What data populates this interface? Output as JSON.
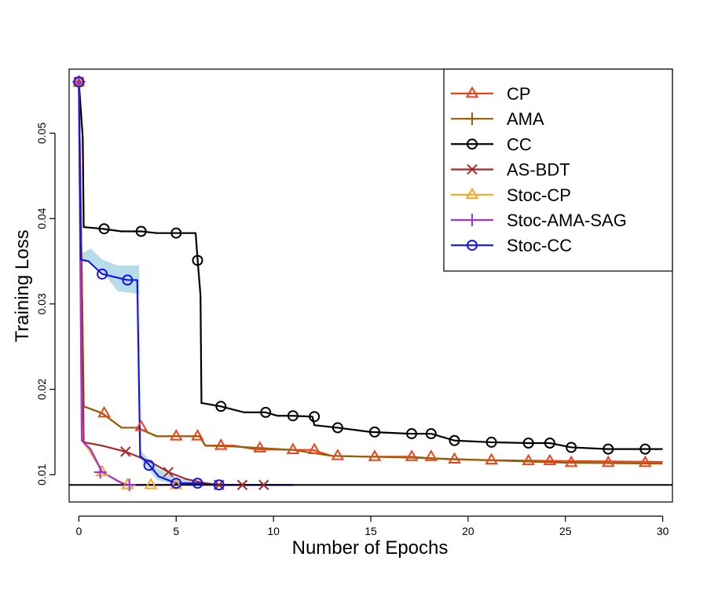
{
  "chart_data": {
    "type": "line",
    "title": "",
    "xlabel": "Number of Epochs",
    "ylabel": "Training Loss",
    "xlim": [
      -0.5,
      30.5
    ],
    "ylim": [
      0.0068,
      0.0575
    ],
    "xticks": [
      0,
      5,
      10,
      15,
      20,
      25,
      30
    ],
    "yticks": [
      0.01,
      0.02,
      0.03,
      0.04,
      0.05
    ],
    "xtick_labels": [
      "0",
      "5",
      "10",
      "15",
      "20",
      "25",
      "30"
    ],
    "ytick_labels": [
      "0.01",
      "0.02",
      "0.03",
      "0.04",
      "0.05"
    ],
    "grid": false,
    "legend_position": "top-right",
    "reference_line": {
      "y": 0.0088,
      "color": "#000000"
    },
    "series": [
      {
        "name": "CP",
        "color": "#e8431b",
        "marker": "triangle",
        "line_points": [
          [
            0,
            0.056
          ],
          [
            0.25,
            0.018
          ],
          [
            1.2,
            0.0172
          ],
          [
            2.2,
            0.0155
          ],
          [
            3,
            0.0155
          ],
          [
            4,
            0.0145
          ],
          [
            5,
            0.0145
          ],
          [
            6.2,
            0.0145
          ],
          [
            6.5,
            0.0134
          ],
          [
            7.3,
            0.0134
          ],
          [
            8,
            0.0134
          ],
          [
            9,
            0.013
          ],
          [
            11,
            0.0129
          ],
          [
            12,
            0.0129
          ],
          [
            13,
            0.0122
          ],
          [
            15,
            0.0121
          ],
          [
            17,
            0.0121
          ],
          [
            19,
            0.0118
          ],
          [
            21,
            0.0117
          ],
          [
            25,
            0.0116
          ],
          [
            30,
            0.0115
          ]
        ],
        "marker_points": [
          [
            0,
            0.056
          ],
          [
            1.3,
            0.0172
          ],
          [
            3.2,
            0.0156
          ],
          [
            5,
            0.0145
          ],
          [
            6.1,
            0.0145
          ],
          [
            7.3,
            0.0134
          ],
          [
            9.3,
            0.0131
          ],
          [
            11,
            0.0129
          ],
          [
            12.1,
            0.0129
          ],
          [
            13.3,
            0.0122
          ],
          [
            15.2,
            0.0121
          ],
          [
            17.1,
            0.0121
          ],
          [
            18.1,
            0.0121
          ],
          [
            19.3,
            0.0118
          ],
          [
            21.2,
            0.0117
          ],
          [
            23.1,
            0.0116
          ],
          [
            24.2,
            0.0116
          ],
          [
            25.3,
            0.0114
          ],
          [
            27.2,
            0.0114
          ],
          [
            29.1,
            0.0114
          ]
        ]
      },
      {
        "name": "AMA",
        "color": "#93600b",
        "marker": "plus",
        "line_points": [
          [
            0,
            0.056
          ],
          [
            0.25,
            0.018
          ],
          [
            1.2,
            0.0172
          ],
          [
            2.2,
            0.0155
          ],
          [
            3,
            0.0155
          ],
          [
            4,
            0.0145
          ],
          [
            5,
            0.0145
          ],
          [
            6.2,
            0.0145
          ],
          [
            6.5,
            0.0134
          ],
          [
            8,
            0.0133
          ],
          [
            11,
            0.0129
          ],
          [
            13,
            0.0122
          ],
          [
            17,
            0.012
          ],
          [
            21,
            0.0117
          ],
          [
            25,
            0.0114
          ],
          [
            30,
            0.0113
          ]
        ],
        "marker_points": [
          [
            0,
            0.056
          ]
        ]
      },
      {
        "name": "CC",
        "color": "#000000",
        "marker": "circle",
        "line_points": [
          [
            0,
            0.056
          ],
          [
            0.2,
            0.0495
          ],
          [
            0.25,
            0.039
          ],
          [
            1.2,
            0.0388
          ],
          [
            2.2,
            0.0385
          ],
          [
            3.2,
            0.0385
          ],
          [
            4,
            0.0383
          ],
          [
            5,
            0.0383
          ],
          [
            6,
            0.0383
          ],
          [
            6.1,
            0.0352
          ],
          [
            6.25,
            0.031
          ],
          [
            6.3,
            0.0184
          ],
          [
            7.3,
            0.018
          ],
          [
            8.5,
            0.0173
          ],
          [
            9.6,
            0.0173
          ],
          [
            10.2,
            0.0169
          ],
          [
            11,
            0.0169
          ],
          [
            12,
            0.0168
          ],
          [
            12.1,
            0.0158
          ],
          [
            13.3,
            0.0155
          ],
          [
            15,
            0.015
          ],
          [
            17,
            0.0148
          ],
          [
            18.1,
            0.0148
          ],
          [
            19.3,
            0.014
          ],
          [
            21.2,
            0.0138
          ],
          [
            23.1,
            0.0137
          ],
          [
            24.2,
            0.0137
          ],
          [
            25.3,
            0.0132
          ],
          [
            27.2,
            0.013
          ],
          [
            30,
            0.013
          ]
        ],
        "marker_points": [
          [
            0,
            0.056
          ],
          [
            1.3,
            0.0388
          ],
          [
            3.2,
            0.0385
          ],
          [
            5,
            0.0383
          ],
          [
            6.1,
            0.0351
          ],
          [
            7.3,
            0.018
          ],
          [
            9.6,
            0.0173
          ],
          [
            11,
            0.0169
          ],
          [
            12.1,
            0.0168
          ],
          [
            13.3,
            0.0155
          ],
          [
            15.2,
            0.015
          ],
          [
            17.1,
            0.0148
          ],
          [
            18.1,
            0.0148
          ],
          [
            19.3,
            0.014
          ],
          [
            21.2,
            0.0138
          ],
          [
            23.1,
            0.0137
          ],
          [
            24.2,
            0.0137
          ],
          [
            25.3,
            0.0132
          ],
          [
            27.2,
            0.013
          ],
          [
            29.1,
            0.013
          ]
        ]
      },
      {
        "name": "AS-BDT",
        "color": "#a52a2a",
        "marker": "cross",
        "line_points": [
          [
            0,
            0.056
          ],
          [
            0.25,
            0.0138
          ],
          [
            1.2,
            0.0134
          ],
          [
            2.4,
            0.0127
          ],
          [
            3.6,
            0.0116
          ],
          [
            4.6,
            0.0103
          ],
          [
            5.5,
            0.0095
          ],
          [
            6.5,
            0.009
          ],
          [
            7.2,
            0.0088
          ],
          [
            11,
            0.0088
          ]
        ],
        "marker_points": [
          [
            0,
            0.056
          ],
          [
            2.4,
            0.0127
          ],
          [
            4.6,
            0.0103
          ],
          [
            7.2,
            0.0088
          ],
          [
            8.4,
            0.0088
          ],
          [
            9.5,
            0.0088
          ]
        ]
      },
      {
        "name": "Stoc-CP",
        "color": "#f5a623",
        "marker": "triangle",
        "line_points": [
          [
            0,
            0.056
          ],
          [
            0.15,
            0.014
          ],
          [
            0.5,
            0.013
          ],
          [
            1.2,
            0.0103
          ],
          [
            2,
            0.0093
          ],
          [
            2.5,
            0.0088
          ],
          [
            5,
            0.0088
          ]
        ],
        "marker_points": [
          [
            0,
            0.056
          ],
          [
            1.2,
            0.0103
          ],
          [
            2.5,
            0.0088
          ],
          [
            3.7,
            0.0088
          ],
          [
            5,
            0.0088
          ]
        ]
      },
      {
        "name": "Stoc-AMA-SAG",
        "color": "#a033d9",
        "marker": "plus",
        "line_points": [
          [
            0,
            0.056
          ],
          [
            0.15,
            0.014
          ],
          [
            0.6,
            0.013
          ],
          [
            1.2,
            0.0103
          ],
          [
            2.2,
            0.009
          ],
          [
            2.6,
            0.0088
          ],
          [
            5,
            0.0088
          ]
        ],
        "marker_points": [
          [
            0,
            0.056
          ],
          [
            1.1,
            0.0103
          ],
          [
            2.6,
            0.0088
          ]
        ]
      },
      {
        "name": "Stoc-CC",
        "color": "#1414e6",
        "marker": "circle",
        "line_points": [
          [
            0,
            0.056
          ],
          [
            0.1,
            0.0352
          ],
          [
            0.5,
            0.035
          ],
          [
            1.2,
            0.0335
          ],
          [
            2.5,
            0.0328
          ],
          [
            3,
            0.0328
          ],
          [
            3.05,
            0.026
          ],
          [
            3.15,
            0.0122
          ],
          [
            3.6,
            0.0112
          ],
          [
            4.1,
            0.0098
          ],
          [
            5,
            0.009
          ],
          [
            6,
            0.009
          ],
          [
            7,
            0.0088
          ],
          [
            11,
            0.0088
          ]
        ],
        "marker_points": [
          [
            0,
            0.056
          ],
          [
            1.2,
            0.0335
          ],
          [
            2.5,
            0.0328
          ],
          [
            3.6,
            0.0111
          ],
          [
            5,
            0.009
          ],
          [
            6.1,
            0.009
          ],
          [
            7.2,
            0.0088
          ]
        ],
        "band": {
          "color": "#add8e6",
          "x": [
            0.1,
            0.6,
            1.2,
            2,
            3,
            3.1,
            3.2,
            3.6,
            4,
            5,
            6,
            7
          ],
          "upper": [
            0.0358,
            0.0365,
            0.0352,
            0.0345,
            0.0345,
            0.0345,
            0.0128,
            0.0118,
            0.0108,
            0.0096,
            0.0093,
            0.009
          ],
          "lower": [
            0.0348,
            0.035,
            0.0338,
            0.0315,
            0.0312,
            0.0312,
            0.0117,
            0.0106,
            0.0094,
            0.0088,
            0.0088,
            0.0087
          ]
        }
      }
    ]
  }
}
